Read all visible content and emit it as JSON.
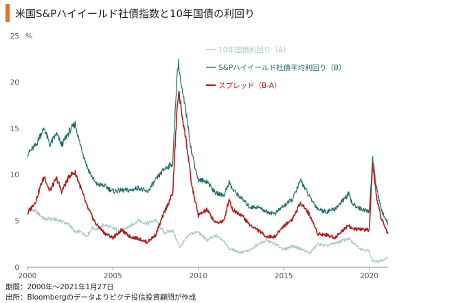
{
  "title": "米国S&Pハイイールド社債指数と10年国債の利回り",
  "accent_color": "#e0732e",
  "footnotes": {
    "period": "期間：2000年〜2021年1月27日",
    "source": "出所：Bloombergのデータよりピクテ投信投資顧問が作成"
  },
  "chart_data": {
    "type": "line",
    "unit_label": "%",
    "ylim": [
      0,
      25
    ],
    "yticks": [
      0,
      5,
      10,
      15,
      20,
      25
    ],
    "xlim": [
      2000,
      2021.1
    ],
    "xticks": [
      2000,
      2005,
      2010,
      2015,
      2020
    ],
    "legend_position": "top-center",
    "series": [
      {
        "name": "10年国債利回り（A）",
        "color": "#a9c8c8",
        "points": [
          [
            2000,
            6.4
          ],
          [
            2000.5,
            6.0
          ],
          [
            2001,
            5.2
          ],
          [
            2001.5,
            5.2
          ],
          [
            2002,
            5.0
          ],
          [
            2002.5,
            4.5
          ],
          [
            2002.8,
            3.7
          ],
          [
            2003,
            3.9
          ],
          [
            2003.5,
            3.4
          ],
          [
            2003.8,
            4.3
          ],
          [
            2004,
            4.1
          ],
          [
            2004.5,
            4.6
          ],
          [
            2005,
            4.2
          ],
          [
            2005.5,
            4.0
          ],
          [
            2006,
            4.4
          ],
          [
            2006.5,
            5.1
          ],
          [
            2007,
            4.7
          ],
          [
            2007.5,
            5.1
          ],
          [
            2008,
            3.7
          ],
          [
            2008.5,
            4.0
          ],
          [
            2008.9,
            2.2
          ],
          [
            2009,
            2.4
          ],
          [
            2009.5,
            3.6
          ],
          [
            2010,
            3.8
          ],
          [
            2010.5,
            2.9
          ],
          [
            2011,
            3.4
          ],
          [
            2011.5,
            2.9
          ],
          [
            2011.8,
            2.0
          ],
          [
            2012,
            1.9
          ],
          [
            2012.5,
            1.6
          ],
          [
            2013,
            1.8
          ],
          [
            2013.5,
            2.5
          ],
          [
            2014,
            2.9
          ],
          [
            2014.5,
            2.5
          ],
          [
            2015,
            1.9
          ],
          [
            2015.5,
            2.3
          ],
          [
            2016,
            2.0
          ],
          [
            2016.5,
            1.5
          ],
          [
            2017,
            2.5
          ],
          [
            2017.5,
            2.3
          ],
          [
            2018,
            2.6
          ],
          [
            2018.8,
            3.1
          ],
          [
            2019,
            2.7
          ],
          [
            2019.5,
            2.0
          ],
          [
            2019.9,
            1.8
          ],
          [
            2020,
            1.7
          ],
          [
            2020.2,
            0.7
          ],
          [
            2020.5,
            0.6
          ],
          [
            2020.8,
            0.8
          ],
          [
            2021.1,
            1.0
          ]
        ]
      },
      {
        "name": "S&Pハイイールド社債平均利回り（B）",
        "color": "#1e6b66",
        "points": [
          [
            2000,
            12.2
          ],
          [
            2000.5,
            13.2
          ],
          [
            2000.8,
            14.5
          ],
          [
            2001,
            15.0
          ],
          [
            2001.3,
            13.2
          ],
          [
            2001.7,
            14.4
          ],
          [
            2002,
            13.2
          ],
          [
            2002.5,
            14.8
          ],
          [
            2002.8,
            15.5
          ],
          [
            2003,
            13.8
          ],
          [
            2003.5,
            10.8
          ],
          [
            2004,
            9.0
          ],
          [
            2004.5,
            8.8
          ],
          [
            2005,
            8.2
          ],
          [
            2005.5,
            8.3
          ],
          [
            2006,
            8.3
          ],
          [
            2006.5,
            8.6
          ],
          [
            2007,
            8.1
          ],
          [
            2007.5,
            9.4
          ],
          [
            2008,
            10.6
          ],
          [
            2008.5,
            11.2
          ],
          [
            2008.75,
            21.0
          ],
          [
            2008.85,
            22.0
          ],
          [
            2009,
            19.5
          ],
          [
            2009.3,
            16.5
          ],
          [
            2009.6,
            12.5
          ],
          [
            2010,
            9.4
          ],
          [
            2010.5,
            9.3
          ],
          [
            2011,
            8.0
          ],
          [
            2011.5,
            7.8
          ],
          [
            2011.8,
            9.2
          ],
          [
            2012,
            8.4
          ],
          [
            2012.5,
            7.5
          ],
          [
            2013,
            6.5
          ],
          [
            2013.5,
            6.5
          ],
          [
            2014,
            6.0
          ],
          [
            2014.5,
            5.8
          ],
          [
            2014.9,
            6.5
          ],
          [
            2015.5,
            7.3
          ],
          [
            2016,
            9.4
          ],
          [
            2016.5,
            7.6
          ],
          [
            2017,
            6.3
          ],
          [
            2017.5,
            6.0
          ],
          [
            2018,
            6.3
          ],
          [
            2018.8,
            7.9
          ],
          [
            2019,
            6.9
          ],
          [
            2019.5,
            6.3
          ],
          [
            2020,
            6.0
          ],
          [
            2020.2,
            11.8
          ],
          [
            2020.4,
            9.0
          ],
          [
            2020.7,
            6.2
          ],
          [
            2021.1,
            4.7
          ]
        ]
      },
      {
        "name": "スプレッド（B-A）",
        "color": "#b01e1e",
        "points": [
          [
            2000,
            5.8
          ],
          [
            2000.5,
            7.2
          ],
          [
            2000.8,
            9.0
          ],
          [
            2001,
            9.8
          ],
          [
            2001.3,
            8.2
          ],
          [
            2001.7,
            9.6
          ],
          [
            2002,
            8.2
          ],
          [
            2002.5,
            10.0
          ],
          [
            2002.8,
            10.2
          ],
          [
            2003,
            9.2
          ],
          [
            2003.5,
            6.5
          ],
          [
            2004,
            4.7
          ],
          [
            2004.5,
            3.7
          ],
          [
            2005,
            3.2
          ],
          [
            2005.5,
            4.0
          ],
          [
            2006,
            3.3
          ],
          [
            2006.5,
            3.1
          ],
          [
            2007,
            2.7
          ],
          [
            2007.5,
            3.5
          ],
          [
            2008,
            5.9
          ],
          [
            2008.5,
            8.0
          ],
          [
            2008.75,
            17.0
          ],
          [
            2008.85,
            19.0
          ],
          [
            2009,
            17.0
          ],
          [
            2009.3,
            13.5
          ],
          [
            2009.6,
            9.0
          ],
          [
            2010,
            5.6
          ],
          [
            2010.5,
            6.2
          ],
          [
            2011,
            4.8
          ],
          [
            2011.5,
            5.0
          ],
          [
            2011.8,
            7.4
          ],
          [
            2012,
            6.2
          ],
          [
            2012.5,
            5.7
          ],
          [
            2013,
            4.6
          ],
          [
            2013.5,
            4.0
          ],
          [
            2014,
            3.3
          ],
          [
            2014.5,
            3.3
          ],
          [
            2014.9,
            4.3
          ],
          [
            2015.5,
            5.2
          ],
          [
            2016,
            7.0
          ],
          [
            2016.5,
            5.7
          ],
          [
            2017,
            3.6
          ],
          [
            2017.5,
            3.5
          ],
          [
            2018,
            3.2
          ],
          [
            2018.8,
            4.6
          ],
          [
            2019,
            4.1
          ],
          [
            2019.5,
            4.1
          ],
          [
            2020,
            4.0
          ],
          [
            2020.2,
            11.0
          ],
          [
            2020.4,
            7.9
          ],
          [
            2020.7,
            5.3
          ],
          [
            2021.1,
            3.6
          ]
        ]
      }
    ]
  }
}
